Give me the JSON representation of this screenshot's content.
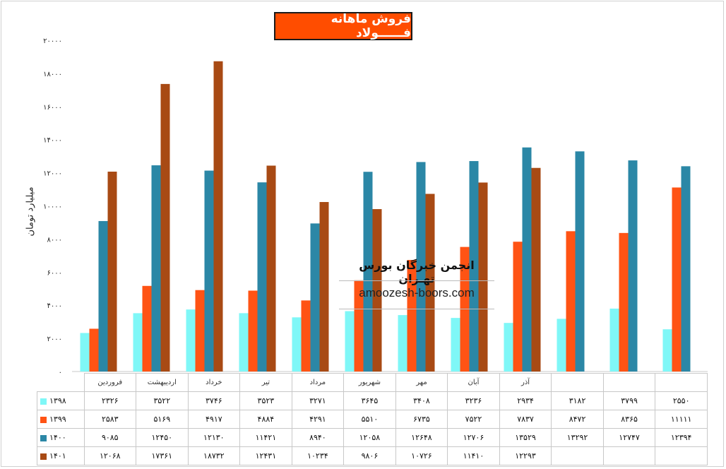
{
  "chart_data": {
    "type": "bar",
    "title": "فروش ماهانه فــــــولاد",
    "ylabel": "میلیارد تومان",
    "xlabel": "",
    "ylim": [
      0,
      20000
    ],
    "y_ticks": [
      "۰",
      "۲۰۰۰",
      "۴۰۰۰",
      "۶۰۰۰",
      "۸۰۰۰",
      "۱۰۰۰۰",
      "۱۲۰۰۰",
      "۱۴۰۰۰",
      "۱۶۰۰۰",
      "۱۸۰۰۰",
      "۲۰۰۰۰"
    ],
    "categories": [
      "فروردین",
      "اردیبهشت",
      "خرداد",
      "تیر",
      "مرداد",
      "شهریور",
      "مهر",
      "آبان",
      "آذر",
      "",
      "",
      ""
    ],
    "series": [
      {
        "name": "۱۳۹۸",
        "color": "#7ff7f7",
        "values": [
          2326,
          3522,
          3746,
          3523,
          3271,
          3645,
          3408,
          3236,
          2934,
          3182,
          3799,
          2550
        ],
        "labels": [
          "۲۳۲۶",
          "۳۵۲۲",
          "۳۷۴۶",
          "۳۵۲۳",
          "۳۲۷۱",
          "۳۶۴۵",
          "۳۴۰۸",
          "۳۲۳۶",
          "۲۹۳۴",
          "۳۱۸۲",
          "۳۷۹۹",
          "۲۵۵۰"
        ]
      },
      {
        "name": "۱۳۹۹",
        "color": "#ff5314",
        "values": [
          2583,
          5169,
          4917,
          4884,
          4291,
          5510,
          6735,
          7522,
          7837,
          8472,
          8365,
          11111
        ],
        "labels": [
          "۲۵۸۳",
          "۵۱۶۹",
          "۴۹۱۷",
          "۴۸۸۴",
          "۴۲۹۱",
          "۵۵۱۰",
          "۶۷۳۵",
          "۷۵۲۲",
          "۷۸۳۷",
          "۸۴۷۲",
          "۸۳۶۵",
          "۱۱۱۱۱"
        ]
      },
      {
        "name": "۱۴۰۰",
        "color": "#2b87a6",
        "values": [
          9085,
          12450,
          12130,
          11421,
          8940,
          12058,
          12648,
          12706,
          13529,
          13292,
          12747,
          12394
        ],
        "labels": [
          "۹۰۸۵",
          "۱۲۴۵۰",
          "۱۲۱۳۰",
          "۱۱۴۲۱",
          "۸۹۴۰",
          "۱۲۰۵۸",
          "۱۲۶۴۸",
          "۱۲۷۰۶",
          "۱۳۵۲۹",
          "۱۳۲۹۲",
          "۱۲۷۴۷",
          "۱۲۳۹۴"
        ]
      },
      {
        "name": "۱۴۰۱",
        "color": "#a84a14",
        "values": [
          12068,
          17361,
          18732,
          12431,
          10234,
          9806,
          10726,
          11410,
          12293,
          null,
          null,
          null
        ],
        "labels": [
          "۱۲۰۶۸",
          "۱۷۳۶۱",
          "۱۸۷۳۲",
          "۱۲۴۳۱",
          "۱۰۲۳۴",
          "۹۸۰۶",
          "۱۰۷۲۶",
          "۱۱۴۱۰",
          "۱۲۲۹۳",
          "",
          "",
          ""
        ]
      }
    ],
    "grid": false,
    "legend": "data-table-left"
  },
  "watermark": {
    "title": "انجمن خبرگان بورس تهـران",
    "url": "amoozesh-boors.com"
  }
}
